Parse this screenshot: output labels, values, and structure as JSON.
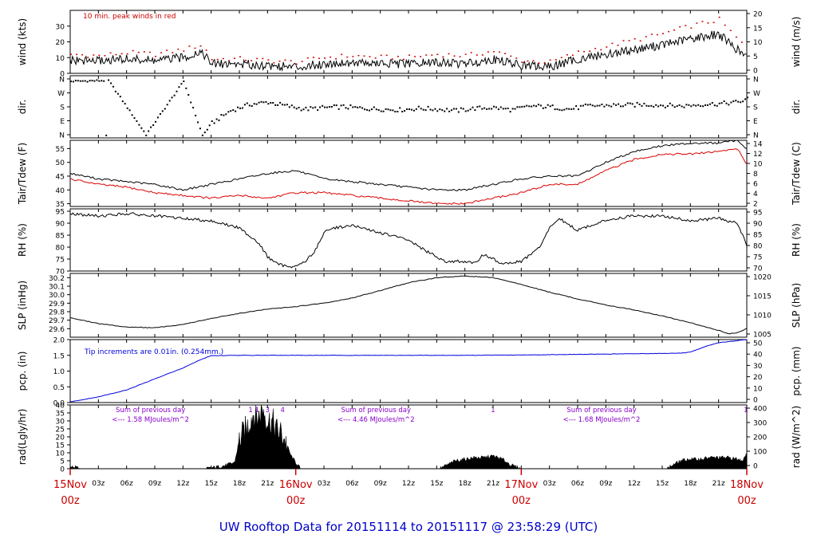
{
  "footer_title": "UW Rooftop Data for 20151114  to  20151117 @ 23:58:29  (UTC)",
  "colors": {
    "peak_wind": "#cc0000",
    "tair": "#000000",
    "tdew": "#dd0000",
    "precip": "#0000dd",
    "rad_note": "#8800cc",
    "date_labels": "#cc0000",
    "title": "#0000cc"
  },
  "x_axis": {
    "hour_ticks": [
      "00z",
      "03z",
      "06z",
      "09z",
      "12z",
      "15z",
      "18z",
      "21z",
      "00z",
      "03z",
      "06z",
      "09z",
      "12z",
      "15z",
      "18z",
      "21z",
      "00z",
      "03z",
      "06z",
      "09z",
      "12z",
      "15z",
      "18z",
      "21z",
      "00z"
    ],
    "date_labels": [
      {
        "hour": 0,
        "line1": "15Nov",
        "line2": "00z"
      },
      {
        "hour": 24,
        "line1": "16Nov",
        "line2": "00z"
      },
      {
        "hour": 48,
        "line1": "17Nov",
        "line2": "00z"
      },
      {
        "hour": 72,
        "line1": "18Nov",
        "line2": "00z"
      }
    ]
  },
  "chart_data": [
    {
      "type": "line",
      "panel": "wind",
      "ylabel": "wind (kts)",
      "ylabel_right": "wind (m/s)",
      "ylim": [
        0,
        40
      ],
      "yticks": [
        0,
        10,
        20,
        30
      ],
      "yticks_right": [
        0,
        5,
        10,
        15,
        20
      ],
      "annotation": "10 min. peak winds in red",
      "series": [
        {
          "x": [
            0,
            3,
            6,
            9,
            12,
            14,
            15,
            18,
            21,
            24,
            27,
            30,
            33,
            36,
            39,
            42,
            45,
            48,
            51,
            54,
            57,
            60,
            63,
            66,
            69,
            72
          ],
          "values": [
            8,
            8,
            9,
            8,
            10,
            14,
            6,
            6,
            5,
            4,
            6,
            7,
            6,
            6,
            7,
            6,
            9,
            5,
            4,
            9,
            12,
            15,
            18,
            22,
            25,
            10
          ]
        },
        {
          "x": [
            0,
            3,
            6,
            9,
            12,
            14,
            15,
            18,
            21,
            24,
            27,
            30,
            33,
            36,
            39,
            42,
            45,
            48,
            51,
            54,
            57,
            60,
            63,
            66,
            69,
            72
          ],
          "values": [
            12,
            11,
            13,
            12,
            15,
            18,
            9,
            9,
            8,
            7,
            10,
            11,
            10,
            10,
            12,
            11,
            14,
            8,
            7,
            13,
            17,
            21,
            25,
            30,
            34,
            15
          ]
        }
      ]
    },
    {
      "type": "scatter",
      "panel": "direction",
      "ylabel": "dir.",
      "ylabel_right": "dir.",
      "yticks": [
        "N",
        "W",
        "S",
        "E",
        "N"
      ],
      "series": [
        {
          "x": [
            0,
            4,
            8,
            12,
            14,
            15,
            17,
            19,
            21,
            23,
            25,
            27,
            29,
            31,
            33,
            35,
            37,
            39,
            41,
            43,
            45,
            47,
            49,
            51,
            53,
            55,
            57,
            59,
            61,
            63,
            65,
            67,
            69,
            71,
            72
          ],
          "values": [
            350,
            355,
            5,
            350,
            0,
            80,
            160,
            200,
            215,
            190,
            170,
            180,
            185,
            175,
            170,
            165,
            175,
            170,
            160,
            175,
            180,
            165,
            190,
            185,
            170,
            190,
            195,
            195,
            200,
            195,
            190,
            200,
            205,
            215,
            235
          ]
        }
      ]
    },
    {
      "type": "line",
      "panel": "temperature",
      "ylabel": "Tair/Tdew (F)",
      "ylabel_right": "Tair/Tdew (C)",
      "ylim": [
        34,
        58
      ],
      "yticks": [
        35,
        40,
        45,
        50,
        55
      ],
      "yticks_right": [
        2,
        4,
        6,
        8,
        10,
        12,
        14
      ],
      "series": [
        {
          "x": [
            0,
            3,
            6,
            9,
            12,
            15,
            18,
            21,
            24,
            27,
            30,
            33,
            36,
            39,
            42,
            45,
            48,
            51,
            54,
            57,
            60,
            63,
            66,
            69,
            71,
            72
          ],
          "values": [
            46,
            44,
            43,
            42,
            40,
            42,
            44,
            46,
            47,
            44,
            43,
            42,
            41,
            40,
            40,
            42,
            44,
            45,
            45,
            50,
            54,
            56,
            57,
            57,
            58,
            55
          ]
        },
        {
          "x": [
            0,
            3,
            6,
            9,
            12,
            15,
            18,
            21,
            24,
            27,
            30,
            33,
            36,
            39,
            42,
            45,
            48,
            51,
            54,
            57,
            60,
            63,
            66,
            69,
            71,
            72
          ],
          "values": [
            44,
            42,
            41,
            39,
            38,
            37,
            38,
            37,
            39,
            39,
            38,
            37,
            36,
            35,
            35,
            37,
            39,
            42,
            42,
            47,
            51,
            53,
            53,
            54,
            55,
            49
          ]
        }
      ]
    },
    {
      "type": "line",
      "panel": "humidity",
      "ylabel": "RH (%)",
      "ylabel_right": "RH (%)",
      "ylim": [
        70,
        96
      ],
      "yticks": [
        70,
        75,
        80,
        85,
        90,
        95
      ],
      "series": [
        {
          "x": [
            0,
            3,
            6,
            9,
            12,
            15,
            18,
            20,
            21,
            22,
            23,
            24,
            25,
            26,
            27,
            28,
            30,
            33,
            36,
            38,
            40,
            42,
            43,
            44,
            46,
            48,
            50,
            51,
            52,
            54,
            56,
            58,
            60,
            63,
            66,
            69,
            71,
            72
          ],
          "values": [
            94,
            93,
            94,
            93,
            92,
            91,
            88,
            82,
            76,
            73,
            72,
            72,
            74,
            78,
            86,
            88,
            89,
            86,
            83,
            78,
            74,
            74,
            73,
            77,
            73,
            74,
            80,
            88,
            92,
            87,
            90,
            92,
            93,
            93,
            91,
            92,
            90,
            81
          ]
        }
      ]
    },
    {
      "type": "line",
      "panel": "pressure",
      "ylabel": "SLP (inHg)",
      "ylabel_right": "SLP (hPa)",
      "ylim": [
        29.5,
        30.25
      ],
      "yticks": [
        29.6,
        29.7,
        29.8,
        29.9,
        30.0,
        30.1,
        30.2
      ],
      "yticks_right": [
        1005,
        1010,
        1015,
        1020
      ],
      "series": [
        {
          "x": [
            0,
            3,
            6,
            9,
            12,
            15,
            18,
            21,
            24,
            27,
            30,
            33,
            36,
            39,
            42,
            45,
            48,
            51,
            54,
            57,
            60,
            63,
            66,
            69,
            70,
            71,
            72
          ],
          "values": [
            29.73,
            29.66,
            29.62,
            29.61,
            29.65,
            29.72,
            29.78,
            29.83,
            29.86,
            29.9,
            29.96,
            30.05,
            30.14,
            30.2,
            30.22,
            30.2,
            30.12,
            30.03,
            29.95,
            29.88,
            29.82,
            29.75,
            29.67,
            29.58,
            29.54,
            29.55,
            29.6
          ]
        }
      ]
    },
    {
      "type": "line",
      "panel": "precipitation",
      "ylabel": "pcp. (in)",
      "ylabel_right": "pcp. (mm)",
      "ylim": [
        0,
        2.0
      ],
      "yticks": [
        0.0,
        0.5,
        1.0,
        1.5,
        2.0
      ],
      "yticks_right": [
        0,
        10,
        20,
        30,
        40,
        50
      ],
      "annotation": "Tip increments are 0.01in. (0.254mm.)",
      "series": [
        {
          "x": [
            0,
            3,
            6,
            9,
            12,
            14,
            15,
            18,
            24,
            30,
            36,
            42,
            48,
            54,
            60,
            65,
            66,
            68,
            69,
            72
          ],
          "values": [
            0.02,
            0.18,
            0.4,
            0.75,
            1.1,
            1.38,
            1.49,
            1.5,
            1.5,
            1.5,
            1.5,
            1.5,
            1.51,
            1.53,
            1.55,
            1.57,
            1.6,
            1.82,
            1.9,
            2.0
          ]
        }
      ]
    },
    {
      "type": "area",
      "panel": "radiation",
      "ylabel": "rad(Lgly/hr)",
      "ylabel_right": "rad (W/m^2)",
      "ylim": [
        0,
        40
      ],
      "yticks": [
        0,
        5,
        10,
        15,
        20,
        25,
        30,
        35,
        40
      ],
      "yticks_right": [
        0,
        100,
        200,
        300,
        400
      ],
      "day_notes": [
        {
          "hour": 6,
          "line1": "Sum of previous day",
          "line2": "<--- 1.58 MJoules/m^2"
        },
        {
          "hour": 30,
          "line1": "Sum of previous day",
          "line2": "<--- 4.46 MJoules/m^2"
        },
        {
          "hour": 54,
          "line1": "Sum of previous day",
          "line2": "<--- 1.68 MJoules/m^2"
        }
      ],
      "tip_marks": [
        {
          "hour": 19.2,
          "label": "1"
        },
        {
          "hour": 19.9,
          "label": "1"
        },
        {
          "hour": 21.0,
          "label": "3"
        },
        {
          "hour": 22.6,
          "label": "4"
        },
        {
          "hour": 45.0,
          "label": "1"
        },
        {
          "hour": 71.9,
          "label": "1"
        }
      ],
      "series": [
        {
          "x": [
            0,
            0.5,
            1,
            14.5,
            15.5,
            16.5,
            17.5,
            18,
            19,
            19.5,
            20,
            20.5,
            21,
            21.5,
            22,
            22.5,
            23,
            23.5,
            24,
            24.5,
            39.3,
            40,
            41,
            42,
            43,
            44,
            45,
            46,
            47,
            48,
            63.5,
            64,
            65,
            66,
            67,
            68,
            69,
            70,
            71,
            71.5,
            72
          ],
          "values": [
            1,
            1,
            0,
            0,
            1,
            2,
            4,
            18,
            28,
            35,
            32,
            38,
            30,
            30,
            24,
            22,
            16,
            8,
            4,
            0,
            0,
            2,
            5,
            6,
            7,
            7,
            8,
            6,
            2,
            0,
            0,
            2,
            5,
            6,
            6,
            7,
            7,
            7,
            6,
            5,
            10
          ]
        }
      ]
    }
  ]
}
